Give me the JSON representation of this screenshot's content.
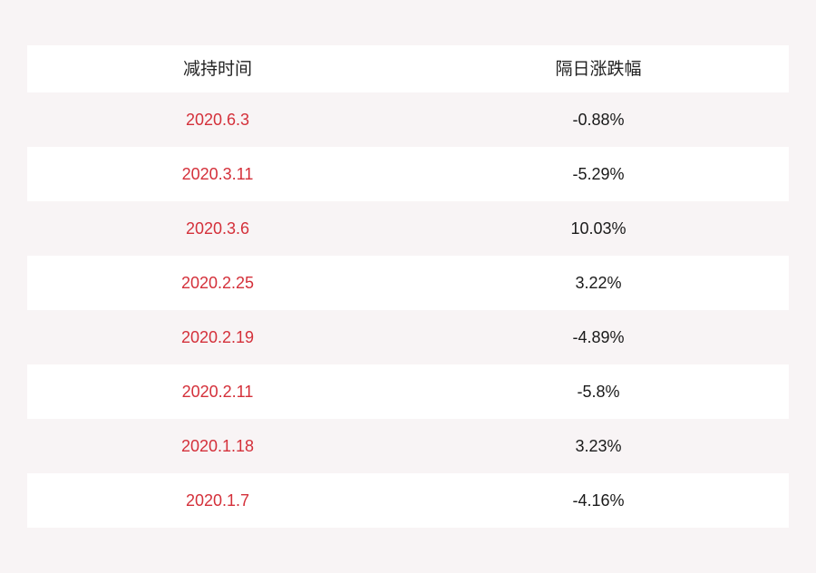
{
  "table": {
    "headers": [
      "减持时间",
      "隔日涨跌幅"
    ],
    "rows": [
      {
        "date": "2020.6.3",
        "change": "-0.88%"
      },
      {
        "date": "2020.3.11",
        "change": "-5.29%"
      },
      {
        "date": "2020.3.6",
        "change": "10.03%"
      },
      {
        "date": "2020.2.25",
        "change": "3.22%"
      },
      {
        "date": "2020.2.19",
        "change": "-4.89%"
      },
      {
        "date": "2020.2.11",
        "change": "-5.8%"
      },
      {
        "date": "2020.1.18",
        "change": "3.23%"
      },
      {
        "date": "2020.1.7",
        "change": "-4.16%"
      }
    ]
  },
  "colors": {
    "background": "#f8f4f5",
    "row_alt": "#ffffff",
    "date_text": "#d4303a",
    "value_text": "#1a1a1a"
  }
}
